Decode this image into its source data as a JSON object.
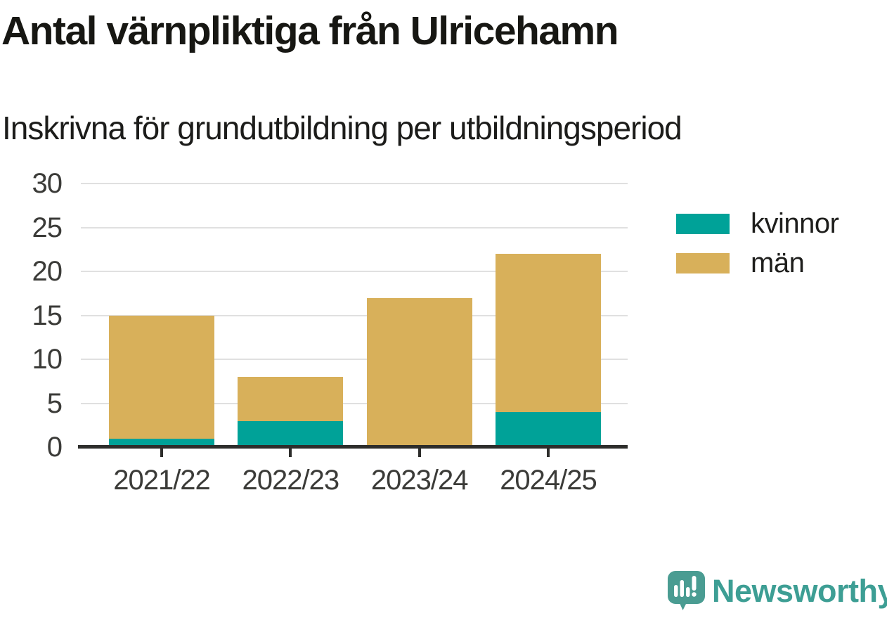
{
  "title": "Antal värnpliktiga från Ulricehamn",
  "subtitle": "Inskrivna för grundutbildning per utbildningsperiod",
  "chart_data": {
    "type": "bar",
    "stacked": true,
    "title": "Antal värnpliktiga från Ulricehamn",
    "subtitle": "Inskrivna för grundutbildning per utbildningsperiod",
    "categories": [
      "2021/22",
      "2022/23",
      "2023/24",
      "2024/25"
    ],
    "series": [
      {
        "name": "kvinnor",
        "color": "#00a298",
        "values": [
          1,
          3,
          0,
          4
        ]
      },
      {
        "name": "män",
        "color": "#d8b05a",
        "values": [
          14,
          5,
          17,
          18
        ]
      }
    ],
    "stack_totals": [
      15,
      8,
      17,
      22
    ],
    "xlabel": "",
    "ylabel": "",
    "ylim": [
      0,
      30
    ],
    "yticks": [
      0,
      5,
      10,
      15,
      20,
      25,
      30
    ],
    "grid": true,
    "legend_position": "right"
  },
  "style": {
    "grid_color": "#e0e0e0",
    "axis_color": "#2d2d2b",
    "tick_label_color": "#3b3b38",
    "text_color": "#171713",
    "background": "#ffffff"
  },
  "branding": {
    "logo_text": "Newsworthy",
    "logo_text_color": "#3d9e94",
    "logo_icon_color": "#4a9c92"
  }
}
